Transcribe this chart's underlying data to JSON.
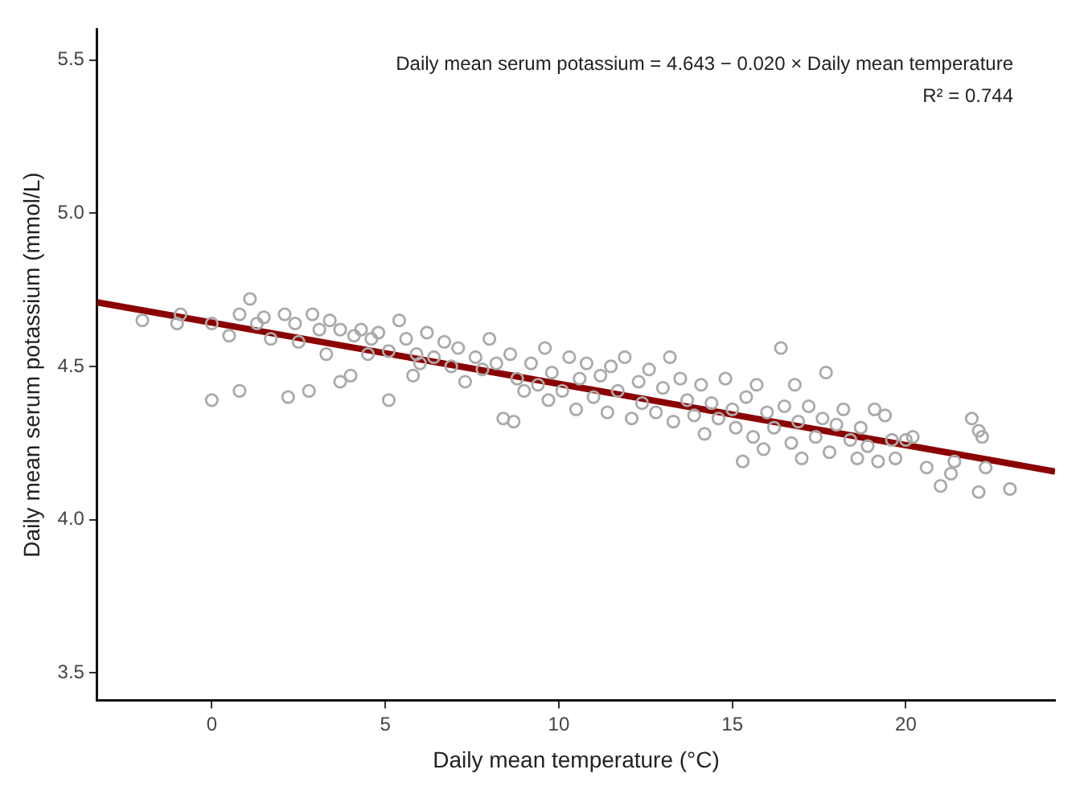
{
  "chart_data": {
    "type": "scatter",
    "xlabel": "Daily mean temperature (°C)",
    "ylabel": "Daily mean serum potassium (mmol/L)",
    "annotations": [
      "Daily mean serum potassium = 4.643 − 0.020 × Daily mean temperature",
      "R² = 0.744"
    ],
    "xlim": [
      -3.3,
      24.3
    ],
    "ylim": [
      3.41,
      5.6
    ],
    "xticks": [
      0,
      5,
      10,
      15,
      20
    ],
    "yticks": [
      {
        "value": 3.5,
        "label": "3.5"
      },
      {
        "value": 4,
        "label": "4.0"
      },
      {
        "value": 4.5,
        "label": "4.5"
      },
      {
        "value": 5,
        "label": "5.0"
      },
      {
        "value": 5.5,
        "label": "5.5"
      }
    ],
    "grid": false,
    "legend": false,
    "series": [
      {
        "marker": "circle",
        "color": "#aaaaaa",
        "x": [
          -2.0,
          -1.0,
          -0.9,
          0,
          0,
          0.5,
          0.8,
          0.8,
          1.1,
          1.3,
          1.5,
          1.7,
          2.1,
          2.2,
          2.4,
          2.5,
          2.8,
          2.9,
          3.1,
          3.3,
          3.4,
          3.7,
          3.7,
          4.0,
          4.1,
          4.3,
          4.5,
          4.6,
          4.8,
          5.1,
          5.1,
          5.4,
          5.6,
          5.8,
          5.9,
          6.0,
          6.2,
          6.4,
          6.7,
          6.9,
          7.1,
          7.3,
          7.6,
          7.8,
          8.0,
          8.2,
          8.4,
          8.6,
          8.7,
          8.8,
          9.0,
          9.2,
          9.4,
          9.6,
          9.7,
          9.8,
          10.1,
          10.3,
          10.5,
          10.6,
          10.8,
          11.0,
          11.2,
          11.4,
          11.5,
          11.7,
          11.9,
          12.1,
          12.3,
          12.4,
          12.6,
          12.8,
          13.0,
          13.2,
          13.3,
          13.5,
          13.7,
          13.9,
          14.1,
          14.2,
          14.4,
          14.6,
          14.8,
          15.0,
          15.1,
          15.3,
          15.4,
          15.6,
          15.7,
          15.9,
          16.0,
          16.2,
          16.4,
          16.5,
          16.7,
          16.8,
          16.9,
          17.0,
          17.2,
          17.4,
          17.6,
          17.7,
          17.8,
          18.0,
          18.2,
          18.4,
          18.6,
          18.7,
          18.9,
          19.1,
          19.2,
          19.4,
          19.6,
          19.7,
          20.0,
          20.2,
          20.6,
          21.0,
          21.3,
          21.4,
          21.9,
          22.1,
          22.2,
          22.1,
          22.3,
          23.0
        ],
        "values": [
          4.65,
          4.64,
          4.67,
          4.64,
          4.39,
          4.6,
          4.67,
          4.42,
          4.72,
          4.64,
          4.66,
          4.59,
          4.67,
          4.4,
          4.64,
          4.58,
          4.42,
          4.67,
          4.62,
          4.54,
          4.65,
          4.45,
          4.62,
          4.47,
          4.6,
          4.62,
          4.54,
          4.59,
          4.61,
          4.39,
          4.55,
          4.65,
          4.59,
          4.47,
          4.54,
          4.51,
          4.61,
          4.53,
          4.58,
          4.5,
          4.56,
          4.45,
          4.53,
          4.49,
          4.59,
          4.51,
          4.33,
          4.54,
          4.32,
          4.46,
          4.42,
          4.51,
          4.44,
          4.56,
          4.39,
          4.48,
          4.42,
          4.53,
          4.36,
          4.46,
          4.51,
          4.4,
          4.47,
          4.35,
          4.5,
          4.42,
          4.53,
          4.33,
          4.45,
          4.38,
          4.49,
          4.35,
          4.43,
          4.53,
          4.32,
          4.46,
          4.39,
          4.34,
          4.44,
          4.28,
          4.38,
          4.33,
          4.46,
          4.36,
          4.3,
          4.19,
          4.4,
          4.27,
          4.44,
          4.23,
          4.35,
          4.3,
          4.56,
          4.37,
          4.25,
          4.44,
          4.32,
          4.2,
          4.37,
          4.27,
          4.33,
          4.48,
          4.22,
          4.31,
          4.36,
          4.26,
          4.2,
          4.3,
          4.24,
          4.36,
          4.19,
          4.34,
          4.26,
          4.2,
          4.26,
          4.27,
          4.17,
          4.11,
          4.15,
          4.19,
          4.33,
          4.29,
          4.27,
          4.09,
          4.17,
          4.1
        ]
      },
      {
        "type": "line",
        "color": "#8b0000",
        "line_style": "solid",
        "marker": "none",
        "x": [
          -3.3,
          24.3
        ],
        "values": [
          4.709,
          4.157
        ]
      }
    ]
  }
}
